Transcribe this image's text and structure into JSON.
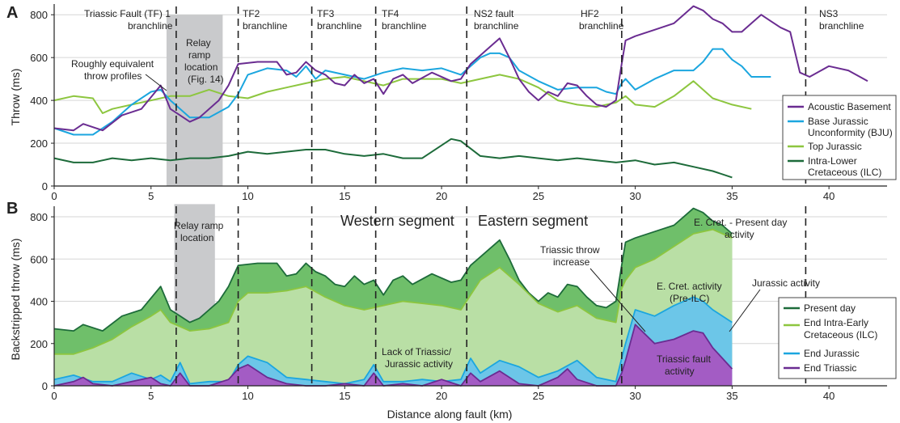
{
  "figure": {
    "panel_a_letter": "A",
    "panel_b_letter": "B",
    "xlabel": "Distance along fault (km)",
    "x_ticks": [
      "0",
      "5",
      "10",
      "15",
      "20",
      "25",
      "30",
      "35",
      "40"
    ],
    "panel_a_ylabel": "Throw (ms)",
    "panel_b_ylabel": "Backstripped throw (ms)",
    "y_ticks": [
      "0",
      "200",
      "400",
      "600",
      "800"
    ]
  },
  "colors": {
    "acoustic_basement": "#6a2c91",
    "bju": "#1ba6df",
    "top_jurassic": "#8dc63f",
    "ilc": "#1d6b3a",
    "present_fill": "#6fbf6a",
    "ilc_fill": "#b9dfa5",
    "jurassic_fill": "#6cc6e8",
    "triassic_fill": "#a35cc4",
    "relay": "#c9cacc"
  },
  "chart_data": [
    {
      "type": "line",
      "panel": "A",
      "xlabel": "Distance along fault (km)",
      "ylabel": "Throw (ms)",
      "xlim": [
        0,
        43
      ],
      "ylim": [
        0,
        850
      ],
      "x_ticks": [
        0,
        5,
        10,
        15,
        20,
        25,
        30,
        35,
        40
      ],
      "y_ticks": [
        0,
        200,
        400,
        600,
        800
      ],
      "grid": "horizontal",
      "legend_position": "right",
      "series": [
        {
          "name": "Acoustic Basement",
          "color": "#6a2c91",
          "x": [
            0,
            1,
            1.5,
            2.5,
            3.5,
            4.5,
            5.5,
            6,
            6.5,
            7,
            7.5,
            8,
            8.5,
            9,
            9.5,
            10.5,
            11.5,
            12,
            12.5,
            13,
            13.5,
            14,
            14.5,
            15,
            15.5,
            16,
            16.5,
            17,
            17.5,
            18,
            18.5,
            19.5,
            20.5,
            21,
            21.5,
            22,
            22.5,
            23,
            23.5,
            24,
            24.5,
            25,
            25.5,
            26,
            26.5,
            27,
            27.5,
            28,
            28.5,
            29,
            29.3,
            29.5,
            30,
            31,
            32,
            32.5,
            33,
            33.5,
            34,
            34.5,
            35,
            35.5,
            36,
            36.5,
            37,
            37.5,
            38,
            38.5,
            39,
            40,
            41,
            42
          ],
          "y": [
            270,
            260,
            290,
            260,
            330,
            360,
            470,
            360,
            330,
            300,
            320,
            360,
            400,
            470,
            570,
            580,
            580,
            520,
            530,
            580,
            540,
            520,
            480,
            470,
            520,
            480,
            500,
            430,
            500,
            520,
            480,
            530,
            490,
            500,
            570,
            610,
            650,
            690,
            600,
            500,
            440,
            400,
            440,
            420,
            480,
            470,
            420,
            380,
            370,
            400,
            570,
            680,
            700,
            730,
            760,
            800,
            840,
            820,
            780,
            760,
            720,
            720,
            760,
            800,
            770,
            740,
            720,
            530,
            510,
            560,
            540,
            490
          ]
        },
        {
          "name": "Base Jurassic Unconformity (BJU)",
          "color": "#1ba6df",
          "x": [
            0,
            1,
            2,
            3,
            4,
            5,
            5.5,
            6,
            7,
            8,
            9,
            9.5,
            10,
            11,
            12,
            12.5,
            13,
            13.5,
            14,
            15,
            16,
            17,
            18,
            19,
            20,
            21,
            21.5,
            22,
            22.5,
            23,
            23.5,
            24,
            25,
            26,
            27,
            28,
            28.5,
            29,
            29.3,
            29.5,
            30,
            31,
            32,
            33,
            33.5,
            34,
            34.5,
            35,
            35.5,
            36,
            36.5,
            37
          ],
          "y": [
            270,
            240,
            240,
            300,
            380,
            440,
            450,
            400,
            320,
            320,
            370,
            430,
            520,
            550,
            540,
            510,
            560,
            500,
            540,
            520,
            500,
            530,
            550,
            540,
            550,
            520,
            560,
            600,
            620,
            620,
            600,
            540,
            490,
            450,
            460,
            460,
            440,
            430,
            480,
            500,
            450,
            500,
            540,
            540,
            580,
            640,
            640,
            590,
            560,
            510,
            510,
            510
          ]
        },
        {
          "name": "Top Jurassic",
          "color": "#8dc63f",
          "x": [
            0,
            1,
            2,
            2.5,
            3,
            4,
            5,
            6,
            7,
            8,
            9,
            10,
            11,
            12,
            13,
            14,
            15,
            16,
            17,
            18,
            19,
            20,
            21,
            22,
            23,
            24,
            25,
            26,
            27,
            28,
            29,
            29.5,
            30,
            31,
            32,
            33,
            34,
            35,
            36
          ],
          "y": [
            400,
            420,
            410,
            340,
            360,
            380,
            400,
            420,
            420,
            450,
            420,
            410,
            440,
            460,
            480,
            500,
            510,
            490,
            470,
            500,
            500,
            500,
            480,
            500,
            520,
            500,
            460,
            400,
            380,
            370,
            390,
            420,
            380,
            370,
            420,
            490,
            410,
            380,
            360
          ]
        },
        {
          "name": "Intra-Lower Cretaceous (ILC)",
          "color": "#1d6b3a",
          "x": [
            0,
            1,
            2,
            3,
            4,
            5,
            6,
            7,
            8,
            9,
            10,
            11,
            12,
            13,
            14,
            15,
            16,
            17,
            18,
            19,
            20,
            20.5,
            21,
            22,
            23,
            24,
            25,
            26,
            27,
            28,
            29,
            30,
            31,
            32,
            33,
            34,
            35
          ],
          "y": [
            130,
            110,
            110,
            130,
            120,
            130,
            120,
            130,
            130,
            140,
            160,
            150,
            160,
            170,
            170,
            150,
            140,
            150,
            130,
            130,
            190,
            220,
            210,
            140,
            130,
            140,
            130,
            120,
            130,
            120,
            110,
            120,
            100,
            110,
            90,
            70,
            40
          ]
        }
      ],
      "annotations": [
        "Roughly equivalent throw profiles",
        "Relay ramp location (Fig. 14)"
      ],
      "branchlines": [
        {
          "label": "Triassic Fault (TF) 1 branchline",
          "x": 6.3
        },
        {
          "label": "TF2 branchline",
          "x": 9.5
        },
        {
          "label": "TF3 branchline",
          "x": 13.3
        },
        {
          "label": "TF4 branchline",
          "x": 16.6
        },
        {
          "label": "NS2 fault branchline",
          "x": 21.3
        },
        {
          "label": "HF2 branchline",
          "x": 29.3
        },
        {
          "label": "NS3 branchline",
          "x": 38.8
        }
      ],
      "relay_ramp_km": [
        5.8,
        8.7
      ]
    },
    {
      "type": "area",
      "panel": "B",
      "xlabel": "Distance along fault (km)",
      "ylabel": "Backstripped throw (ms)",
      "xlim": [
        0,
        43
      ],
      "ylim": [
        0,
        850
      ],
      "x_ticks": [
        0,
        5,
        10,
        15,
        20,
        25,
        30,
        35,
        40
      ],
      "y_ticks": [
        0,
        200,
        400,
        600,
        800
      ],
      "grid": "horizontal",
      "legend_position": "right",
      "series": [
        {
          "name": "Present day",
          "color": "#1d6b3a",
          "fill": "#6fbf6a",
          "x": [
            0,
            1,
            1.5,
            2.5,
            3.5,
            4.5,
            5.5,
            6,
            6.5,
            7,
            7.5,
            8,
            8.5,
            9,
            9.5,
            10.5,
            11.5,
            12,
            12.5,
            13,
            13.5,
            14,
            14.5,
            15,
            15.5,
            16,
            16.5,
            17,
            17.5,
            18,
            18.5,
            19.5,
            20.5,
            21,
            21.5,
            22,
            22.5,
            23,
            23.5,
            24,
            24.5,
            25,
            25.5,
            26,
            26.5,
            27,
            27.5,
            28,
            28.5,
            29,
            29.3,
            29.5,
            30,
            31,
            32,
            32.5,
            33,
            33.5,
            34,
            34.5,
            35
          ],
          "y": [
            270,
            260,
            290,
            260,
            330,
            360,
            470,
            360,
            330,
            300,
            320,
            360,
            400,
            470,
            570,
            580,
            580,
            520,
            530,
            580,
            540,
            520,
            480,
            470,
            520,
            480,
            500,
            430,
            500,
            520,
            480,
            530,
            490,
            500,
            570,
            610,
            650,
            690,
            600,
            500,
            440,
            400,
            440,
            420,
            480,
            470,
            420,
            380,
            370,
            400,
            570,
            680,
            700,
            730,
            760,
            800,
            840,
            820,
            780,
            760,
            720
          ]
        },
        {
          "name": "End Intra-Early Cretaceous (ILC)",
          "color": "#8dc63f",
          "fill": "#b9dfa5",
          "x": [
            0,
            1,
            2,
            3,
            4,
            5,
            5.5,
            6,
            7,
            8,
            9,
            9.5,
            10,
            11,
            12,
            13,
            14,
            15,
            16,
            17,
            18,
            19,
            20,
            21,
            22,
            23,
            24,
            25,
            26,
            27,
            28,
            29,
            29.3,
            29.5,
            30,
            31,
            32,
            33,
            34,
            35
          ],
          "y": [
            150,
            150,
            180,
            220,
            280,
            330,
            360,
            300,
            260,
            270,
            300,
            400,
            440,
            440,
            450,
            470,
            420,
            380,
            360,
            380,
            400,
            390,
            380,
            360,
            500,
            560,
            480,
            390,
            350,
            380,
            320,
            300,
            460,
            500,
            560,
            600,
            660,
            720,
            740,
            700
          ]
        },
        {
          "name": "End Jurassic",
          "color": "#1ba6df",
          "fill": "#6cc6e8",
          "x": [
            0,
            1,
            2,
            3,
            4,
            5,
            5.5,
            6,
            6.5,
            7,
            8,
            9,
            9.5,
            10,
            11,
            12,
            13,
            14,
            15,
            16,
            16.5,
            17,
            18,
            19,
            20,
            21,
            21.5,
            22,
            23,
            24,
            25,
            26,
            27,
            28,
            29,
            29.3,
            29.5,
            30,
            31,
            32,
            33,
            33.5,
            34,
            35
          ],
          "y": [
            30,
            50,
            20,
            20,
            60,
            30,
            50,
            20,
            110,
            10,
            20,
            20,
            100,
            140,
            110,
            40,
            30,
            20,
            10,
            30,
            100,
            20,
            20,
            30,
            20,
            30,
            130,
            60,
            120,
            90,
            40,
            70,
            120,
            40,
            20,
            130,
            200,
            360,
            330,
            380,
            420,
            400,
            360,
            300
          ]
        },
        {
          "name": "End Triassic",
          "color": "#6a2c91",
          "fill": "#a35cc4",
          "x": [
            0,
            1,
            1.5,
            2,
            3,
            4,
            5,
            5.5,
            6,
            6.5,
            7,
            8,
            9,
            9.5,
            10,
            11,
            12,
            13,
            14,
            15,
            16,
            16.5,
            17,
            18,
            19,
            20,
            21,
            21.5,
            22,
            23,
            24,
            25,
            26,
            26.5,
            27,
            28,
            29,
            29.3,
            29.5,
            30,
            31,
            32,
            33,
            33.5,
            34,
            35
          ],
          "y": [
            0,
            20,
            40,
            10,
            0,
            20,
            40,
            10,
            0,
            60,
            0,
            0,
            30,
            80,
            100,
            40,
            10,
            0,
            0,
            10,
            0,
            60,
            0,
            10,
            0,
            30,
            0,
            60,
            20,
            70,
            10,
            0,
            40,
            80,
            30,
            0,
            0,
            60,
            120,
            290,
            200,
            220,
            260,
            250,
            180,
            80
          ]
        }
      ],
      "segment_labels": [
        "Western segment",
        "Eastern segment"
      ],
      "annotations": [
        "Relay ramp location",
        "Lack of Triassic/ Jurassic activity",
        "Triassic throw increase",
        "E. Cret. - Present day activity",
        "E. Cret. activity (Pre-ILC)",
        "Jurassic activity",
        "Triassic fault activity"
      ],
      "branchlines_km": [
        6.3,
        9.5,
        13.3,
        16.6,
        21.3,
        29.3,
        38.8
      ],
      "relay_ramp_km": [
        6.2,
        8.3
      ]
    }
  ]
}
